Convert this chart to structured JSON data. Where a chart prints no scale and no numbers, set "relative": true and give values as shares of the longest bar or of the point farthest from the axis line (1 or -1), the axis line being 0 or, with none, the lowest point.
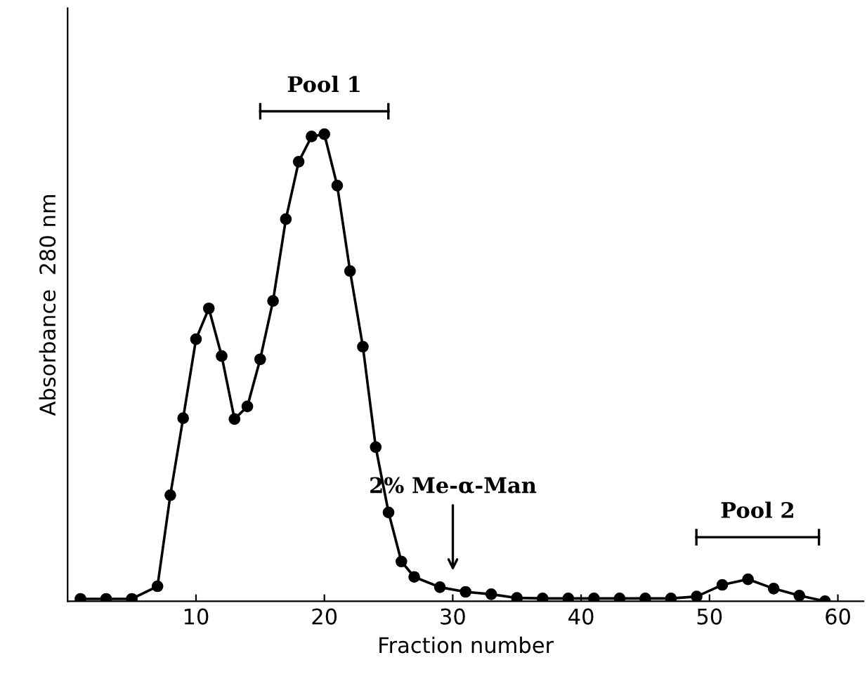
{
  "chart_data": {
    "type": "line",
    "relative": true,
    "xlabel": "Fraction number",
    "ylabel": "Absorbance  280 nm",
    "x": [
      1,
      3,
      5,
      7,
      8,
      9,
      10,
      11,
      12,
      13,
      14,
      15,
      16,
      17,
      18,
      19,
      20,
      21,
      22,
      23,
      24,
      25,
      26,
      27,
      29,
      31,
      33,
      35,
      37,
      39,
      41,
      43,
      45,
      47,
      49,
      51,
      53,
      55,
      57,
      59
    ],
    "values": [
      0.005,
      0.005,
      0.005,
      0.032,
      0.227,
      0.392,
      0.561,
      0.627,
      0.525,
      0.39,
      0.417,
      0.518,
      0.643,
      0.818,
      0.941,
      0.995,
      1.0,
      0.89,
      0.707,
      0.545,
      0.33,
      0.19,
      0.085,
      0.052,
      0.03,
      0.02,
      0.015,
      0.007,
      0.006,
      0.006,
      0.006,
      0.006,
      0.006,
      0.006,
      0.01,
      0.035,
      0.047,
      0.027,
      0.012,
      0.0
    ],
    "color": "#000000",
    "marker": "circle",
    "line_style": "solid",
    "xlim": [
      0,
      62
    ],
    "xticks": [
      10,
      20,
      30,
      40,
      50,
      60
    ],
    "tick_labels": "x",
    "grid": false,
    "annotations": [
      "Pool 1",
      "2% Me-α-Man",
      "Pool 2"
    ]
  }
}
